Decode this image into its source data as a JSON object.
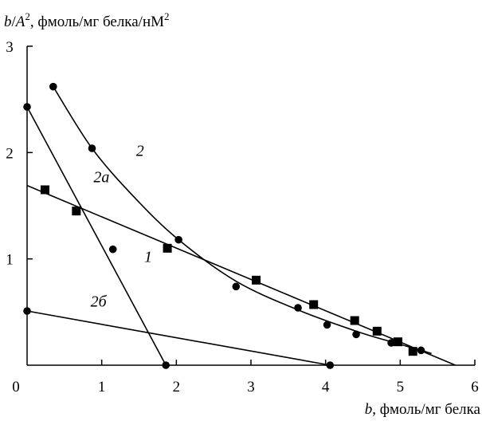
{
  "chart_data": {
    "type": "scatter",
    "title": "",
    "ylabel": {
      "var": "b",
      "slash": "/",
      "var2": "A",
      "sup": "2",
      "rest": ", фмоль/мг белка/нМ",
      "sup2": "2"
    },
    "xlabel": {
      "var": "b",
      "rest": ", фмоль/мг белка"
    },
    "xlim": [
      0,
      6
    ],
    "ylim": [
      0,
      3
    ],
    "x_ticks": [
      0,
      1,
      2,
      3,
      4,
      5,
      6
    ],
    "y_ticks": [
      1,
      2,
      3
    ],
    "grid": false,
    "series": [
      {
        "name": "1",
        "marker": "square",
        "points": [
          {
            "x": 0.24,
            "y": 1.65
          },
          {
            "x": 0.66,
            "y": 1.45
          },
          {
            "x": 1.88,
            "y": 1.1
          },
          {
            "x": 3.07,
            "y": 0.8
          },
          {
            "x": 3.84,
            "y": 0.57
          },
          {
            "x": 4.39,
            "y": 0.42
          },
          {
            "x": 4.69,
            "y": 0.32
          },
          {
            "x": 4.97,
            "y": 0.22
          },
          {
            "x": 5.17,
            "y": 0.13
          }
        ],
        "fit_line": [
          [
            0,
            1.69
          ],
          [
            5.74,
            0
          ]
        ]
      },
      {
        "name": "2",
        "marker": "circle",
        "points": [
          {
            "x": 0.35,
            "y": 2.62
          },
          {
            "x": 0.87,
            "y": 2.04
          },
          {
            "x": 1.15,
            "y": 1.09
          },
          {
            "x": 2.03,
            "y": 1.18
          },
          {
            "x": 2.8,
            "y": 0.74
          },
          {
            "x": 3.63,
            "y": 0.54
          },
          {
            "x": 4.02,
            "y": 0.38
          },
          {
            "x": 4.41,
            "y": 0.29
          },
          {
            "x": 4.88,
            "y": 0.21
          },
          {
            "x": 5.28,
            "y": 0.14
          }
        ],
        "curve": [
          [
            0.35,
            2.62
          ],
          [
            0.87,
            2.04
          ],
          [
            1.45,
            1.57
          ],
          [
            2.03,
            1.18
          ],
          [
            2.8,
            0.79
          ],
          [
            3.63,
            0.52
          ],
          [
            4.41,
            0.32
          ],
          [
            4.88,
            0.22
          ],
          [
            5.28,
            0.14
          ],
          [
            5.42,
            0.11
          ]
        ]
      },
      {
        "name": "2а",
        "marker": "circle",
        "points": [
          {
            "x": 0.0,
            "y": 2.43
          },
          {
            "x": 1.86,
            "y": 0.0
          }
        ],
        "fit_line": [
          [
            0.0,
            2.43
          ],
          [
            1.86,
            0.0
          ]
        ]
      },
      {
        "name": "2б",
        "marker": "circle",
        "points": [
          {
            "x": 0.0,
            "y": 0.51
          },
          {
            "x": 4.06,
            "y": 0.0
          }
        ],
        "fit_line": [
          [
            0.0,
            0.51
          ],
          [
            4.06,
            0.0
          ]
        ]
      }
    ],
    "annotations": [
      {
        "text": "1",
        "x": 1.57,
        "y": 0.97
      },
      {
        "text": "2",
        "x": 1.46,
        "y": 1.97
      },
      {
        "text": "2а",
        "x": 0.89,
        "y": 1.72
      },
      {
        "text": "2б",
        "x": 0.85,
        "y": 0.55
      }
    ]
  }
}
